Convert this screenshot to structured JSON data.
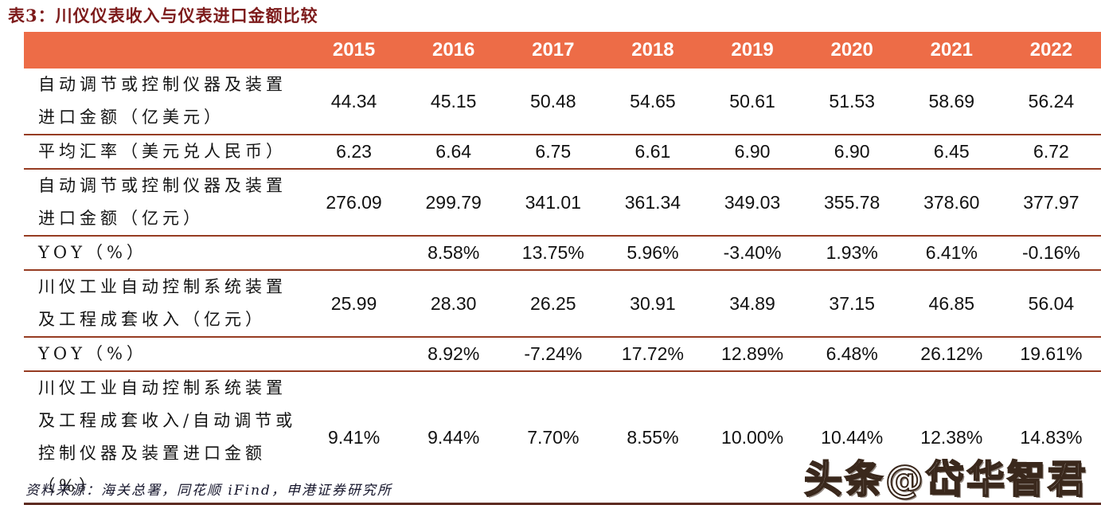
{
  "title": "表3：川仪仪表收入与仪表进口金额比较",
  "table": {
    "years": [
      "2015",
      "2016",
      "2017",
      "2018",
      "2019",
      "2020",
      "2021",
      "2022"
    ],
    "rows": [
      {
        "label": "自动调节或控制仪器及装置进口金额（亿美元）",
        "values": [
          "44.34",
          "45.15",
          "50.48",
          "54.65",
          "50.61",
          "51.53",
          "58.69",
          "56.24"
        ]
      },
      {
        "label": "平均汇率（美元兑人民币）",
        "values": [
          "6.23",
          "6.64",
          "6.75",
          "6.61",
          "6.90",
          "6.90",
          "6.45",
          "6.72"
        ]
      },
      {
        "label": "自动调节或控制仪器及装置进口金额（亿元）",
        "values": [
          "276.09",
          "299.79",
          "341.01",
          "361.34",
          "349.03",
          "355.78",
          "378.60",
          "377.97"
        ]
      },
      {
        "label": "YOY（%）",
        "values": [
          "",
          "8.58%",
          "13.75%",
          "5.96%",
          "-3.40%",
          "1.93%",
          "6.41%",
          "-0.16%"
        ]
      },
      {
        "label": "川仪工业自动控制系统装置及工程成套收入（亿元）",
        "values": [
          "25.99",
          "28.30",
          "26.25",
          "30.91",
          "34.89",
          "37.15",
          "46.85",
          "56.04"
        ]
      },
      {
        "label": "YOY（%）",
        "values": [
          "",
          "8.92%",
          "-7.24%",
          "17.72%",
          "12.89%",
          "6.48%",
          "26.12%",
          "19.61%"
        ]
      },
      {
        "label": "川仪工业自动控制系统装置及工程成套收入/自动调节或控制仪器及装置进口金额（%）",
        "values": [
          "9.41%",
          "9.44%",
          "7.70%",
          "8.55%",
          "10.00%",
          "10.44%",
          "12.38%",
          "14.83%"
        ]
      }
    ]
  },
  "footer": {
    "source": "资料来源：海关总署，同花顺 iFind，申港证券研究所"
  },
  "watermark": "头条@岱华智君",
  "colors": {
    "header_bg": "#ED6C47",
    "title": "#7D1B1B",
    "row_divider": "#963C22",
    "table_bottom_border": "#5E2C22"
  }
}
